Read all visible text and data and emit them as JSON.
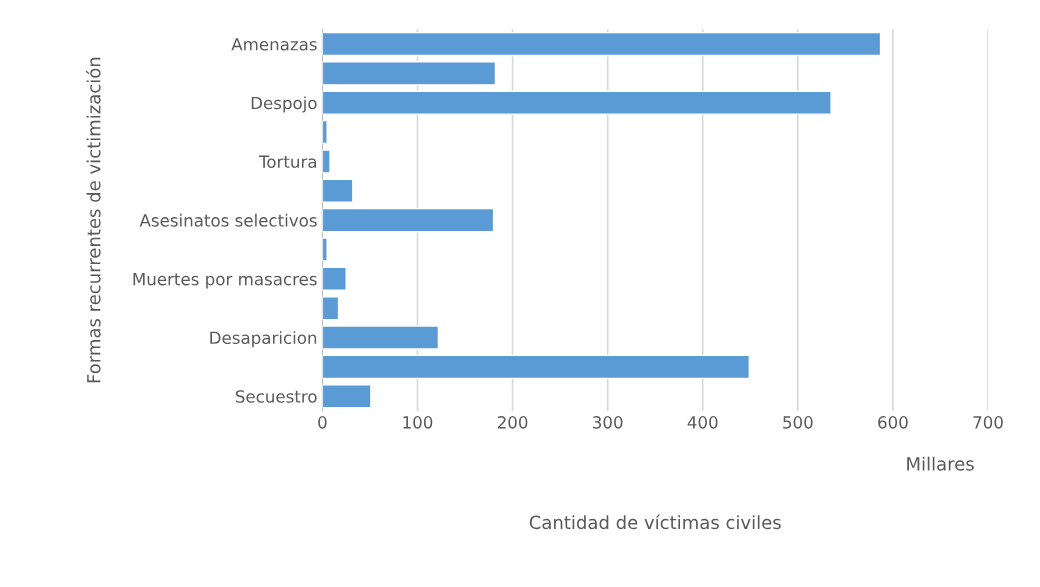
{
  "chart_data": {
    "type": "bar",
    "orientation": "horizontal",
    "xlabel": "Cantidad de víctimas civiles",
    "ylabel": "Formas recurrentes de victimización",
    "categories": [
      "Amenazas",
      null,
      "Despojo",
      null,
      "Tortura",
      null,
      "Asesinatos selectivos",
      null,
      "Muertes por masacres",
      null,
      "Desaparicion",
      null,
      "Secuestro"
    ],
    "values": [
      587,
      182,
      535,
      5,
      8,
      32,
      180,
      5,
      25,
      17,
      122,
      449,
      51
    ],
    "color": "#5b9bd5",
    "xlim": [
      0,
      700
    ],
    "xticks": [
      0,
      100,
      200,
      300,
      400,
      500,
      600,
      700
    ],
    "grid": "x",
    "annotations": [
      "Millares"
    ]
  }
}
